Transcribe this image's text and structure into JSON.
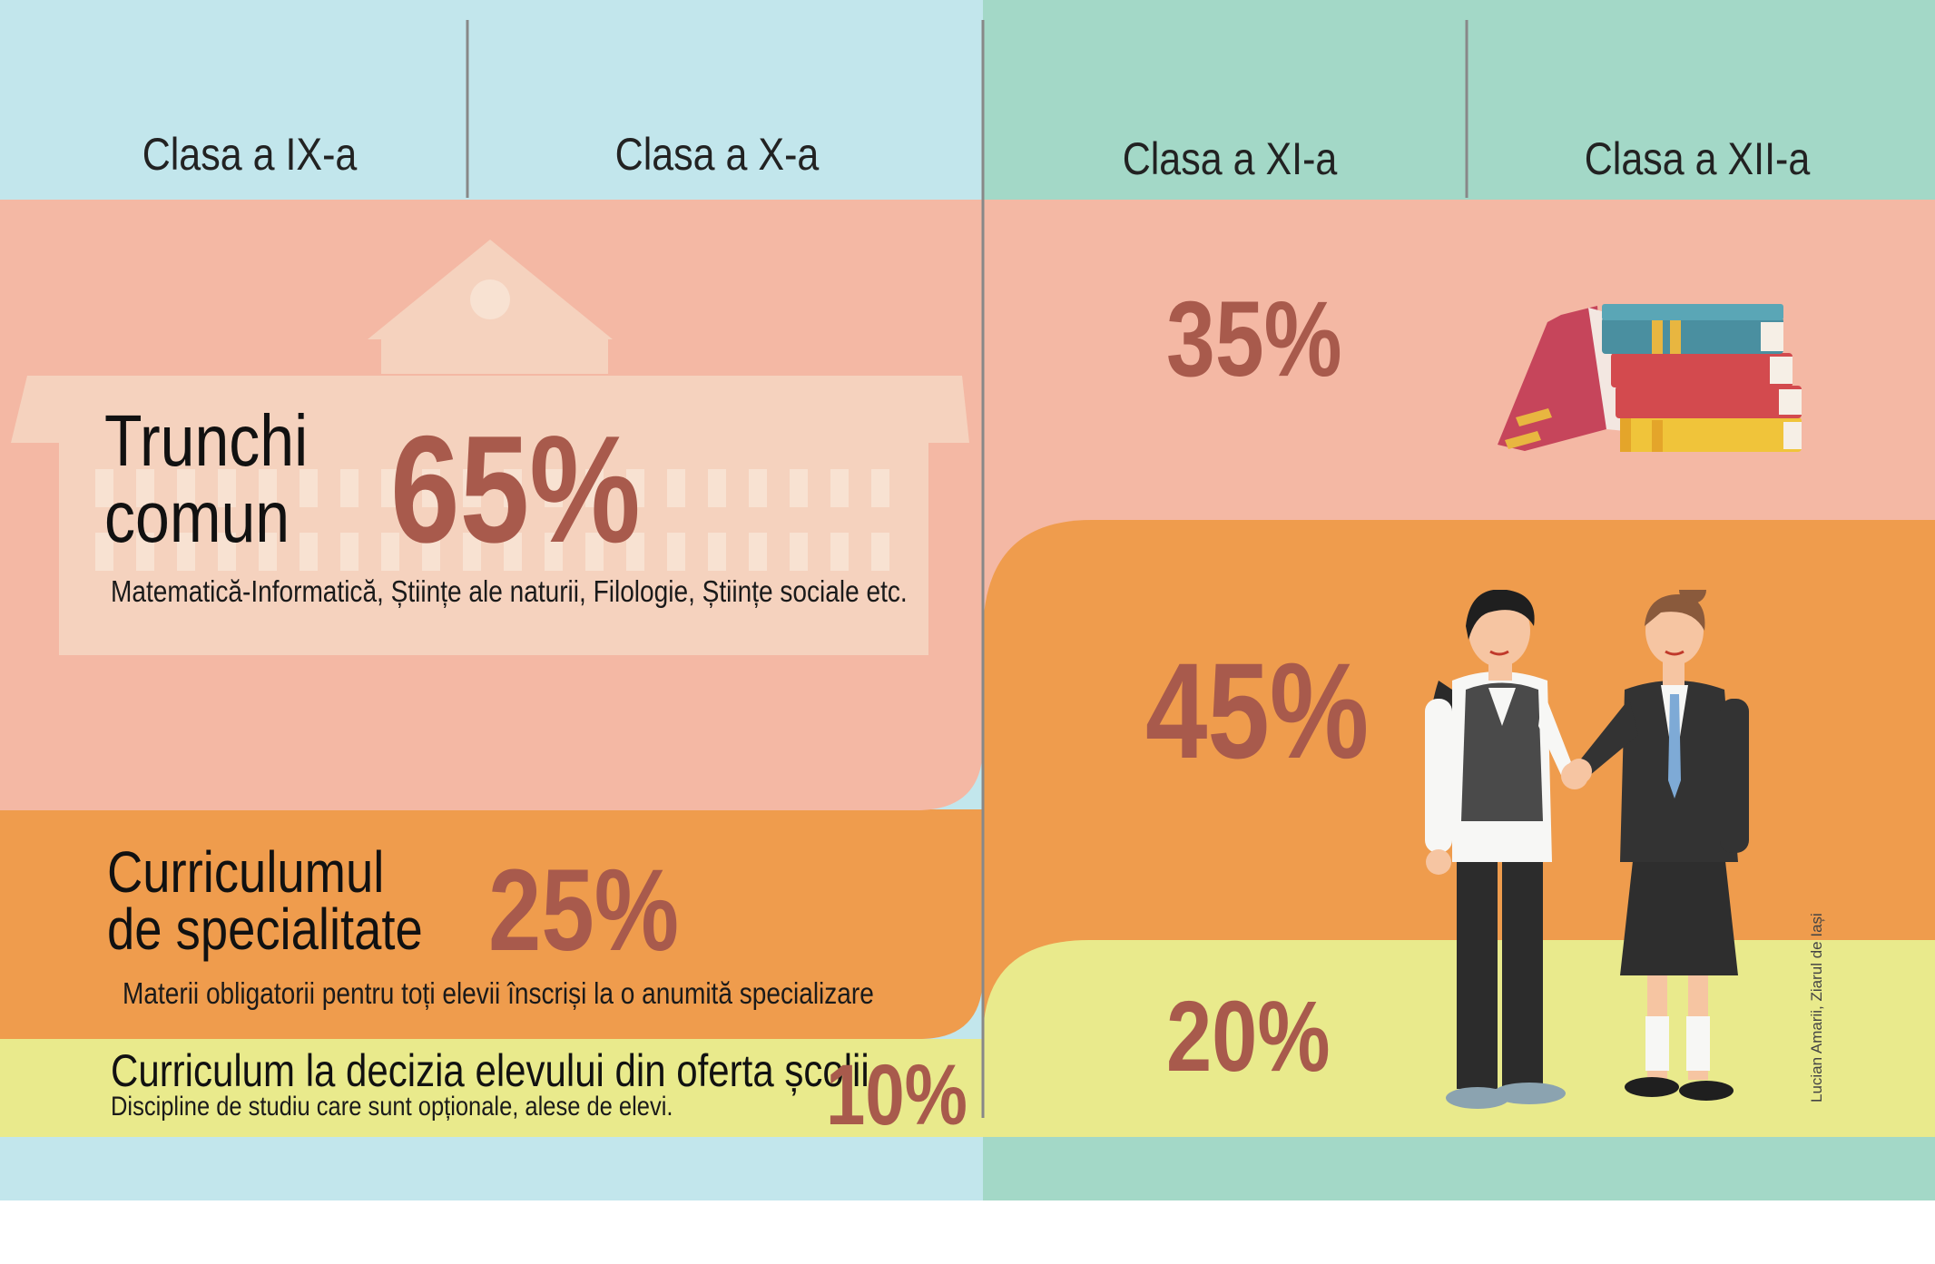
{
  "headers": {
    "col1": "Clasa a IX-a",
    "col2": "Clasa a X-a",
    "col3": "Clasa a XI-a",
    "col4": "Clasa a XII-a"
  },
  "left": {
    "trunchi": {
      "title_line1": "Trunchi",
      "title_line2": "comun",
      "percent": "65%",
      "value": 65,
      "description": "Matematică-Informatică, Științe ale naturii, Filologie, Științe sociale etc."
    },
    "specialitate": {
      "title_line1": "Curriculumul",
      "title_line2": "de specialitate",
      "percent": "25%",
      "value": 25,
      "description": "Materii obligatorii pentru toți elevii înscriși la o anumită specializare"
    },
    "decizie": {
      "title": "Curriculum la decizia elevului din oferta școlii",
      "percent": "10%",
      "value": 10,
      "description": "Discipline de studiu care sunt opționale, alese de elevi."
    }
  },
  "right": {
    "trunchi": {
      "percent": "35%",
      "value": 35
    },
    "specialitate": {
      "percent": "45%",
      "value": 45
    },
    "decizie": {
      "percent": "20%",
      "value": 20
    }
  },
  "credit": "Lucian Amarii, Ziarul de Iași",
  "colors": {
    "left_bg": "#c2e6ec",
    "right_bg": "#a3d8c7",
    "trunchi_band": "#f4b8a4",
    "specialitate_band": "#ef9c4d",
    "decizie_band": "#e9ea8c",
    "percent_text": "#a85a4c",
    "building": "#f5d2be"
  },
  "icons": {
    "building": "school-building-icon",
    "books": "book-stack-icon",
    "students": "students-illustration"
  }
}
